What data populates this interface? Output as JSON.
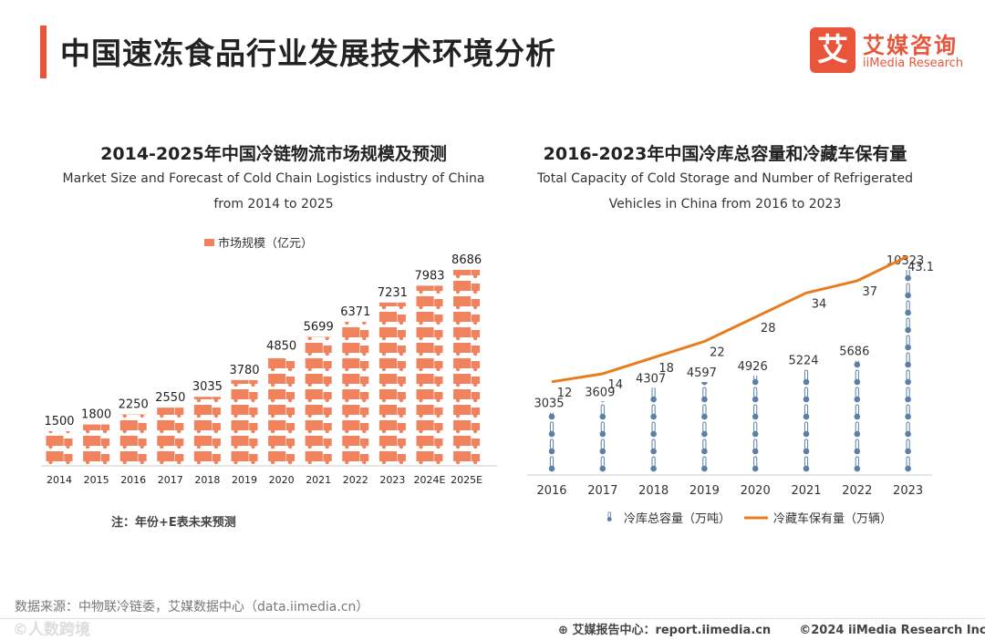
{
  "page": {
    "title": "中国速冻食品行业发展技术环境分析",
    "logo": {
      "glyph": "艾",
      "cn": "艾媒咨询",
      "en": "iiMedia Research"
    },
    "note": "注：年份+E表未来预测",
    "source": "数据来源：中物联冷链委，艾媒数据中心（data.iimedia.cn）",
    "watermark": "©人数跨境",
    "footer": {
      "report": "艾媒报告中心：report.iimedia.cn",
      "copyright": "©2024  iiMedia Research  Inc"
    }
  },
  "colors": {
    "accent": "#e8553a",
    "truck": "#f0825e",
    "line": "#e87d1e",
    "thermo": "#5b7fa6"
  },
  "chart_data": [
    {
      "type": "bar",
      "title": "2014-2025年中国冷链物流市场规模及预测",
      "subtitle_lines": [
        "Market Size and Forecast of Cold Chain Logistics industry of China",
        "from 2014 to 2025"
      ],
      "legend": "市场规模（亿元）",
      "categories": [
        "2014",
        "2015",
        "2016",
        "2017",
        "2018",
        "2019",
        "2020",
        "2021",
        "2022",
        "2023",
        "2024E",
        "2025E"
      ],
      "values": [
        1500,
        1800,
        2250,
        2550,
        3035,
        3780,
        4850,
        5699,
        6371,
        7231,
        7983,
        8686
      ],
      "ylim": [
        0,
        9000
      ],
      "marker": "truck-icon"
    },
    {
      "type": "bar+line",
      "title": "2016-2023年中国冷库总容量和冷藏车保有量",
      "subtitle_lines": [
        "Total Capacity of Cold Storage and Number of Refrigerated",
        "Vehicles in China from 2016 to 2023"
      ],
      "categories": [
        "2016",
        "2017",
        "2018",
        "2019",
        "2020",
        "2021",
        "2022",
        "2023"
      ],
      "series": [
        {
          "name": "冷库总容量（万吨）",
          "type": "bar",
          "marker": "thermometer-icon",
          "values": [
            3035,
            3609,
            4307,
            4597,
            4926,
            5224,
            5686,
            10323
          ]
        },
        {
          "name": "冷藏车保有量（万辆）",
          "type": "line",
          "values": [
            12,
            14,
            18,
            22,
            28,
            34,
            37,
            43.1
          ]
        }
      ],
      "bar_ylim": [
        0,
        11000
      ],
      "line_ylim": [
        0,
        45
      ]
    }
  ]
}
